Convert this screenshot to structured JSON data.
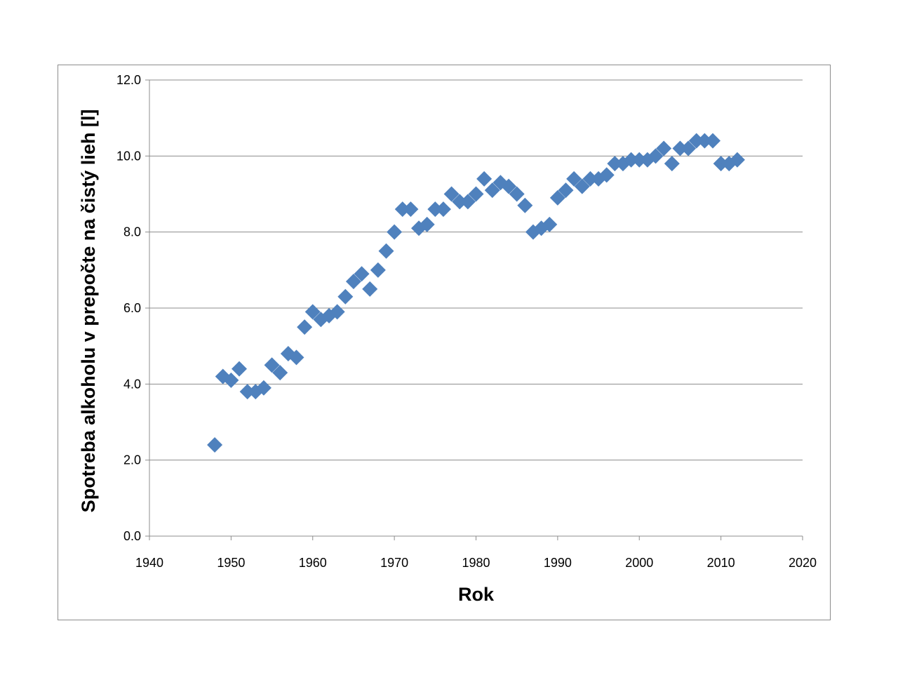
{
  "chart_data": {
    "type": "scatter",
    "title": "",
    "xlabel": "Rok",
    "ylabel": "Spotreba alkoholu v prepočte na čistý lieh [l]",
    "xlim": [
      1940,
      2020
    ],
    "ylim": [
      0,
      12
    ],
    "x_ticks": [
      1940,
      1950,
      1960,
      1970,
      1980,
      1990,
      2000,
      2010,
      2020
    ],
    "y_ticks": [
      "0.0",
      "2.0",
      "4.0",
      "6.0",
      "8.0",
      "10.0",
      "12.0"
    ],
    "grid": "horizontal",
    "legend": "none",
    "marker": "diamond",
    "colors": {
      "marker": "#4f81bd",
      "gridline": "#8c8c8c",
      "axis": "#8c8c8c",
      "frame": "#8c8c8c"
    },
    "series": [
      {
        "x": [
          1948,
          1949,
          1950,
          1951,
          1952,
          1953,
          1954,
          1955,
          1956,
          1957,
          1958,
          1959,
          1960,
          1961,
          1962,
          1963,
          1964,
          1965,
          1966,
          1967,
          1968,
          1969,
          1970,
          1971,
          1972,
          1973,
          1974,
          1975,
          1976,
          1977,
          1978,
          1979,
          1980,
          1981,
          1982,
          1983,
          1984,
          1985,
          1986,
          1987,
          1988,
          1989,
          1990,
          1991,
          1992,
          1993,
          1994,
          1995,
          1996,
          1997,
          1998,
          1999,
          2000,
          2001,
          2002,
          2003,
          2004,
          2005,
          2006,
          2007,
          2008,
          2009,
          2010,
          2011,
          2012
        ],
        "y": [
          2.4,
          4.2,
          4.1,
          4.4,
          3.8,
          3.8,
          3.9,
          4.5,
          4.3,
          4.8,
          4.7,
          5.5,
          5.9,
          5.7,
          5.8,
          5.9,
          6.3,
          6.7,
          6.9,
          6.5,
          7.0,
          7.5,
          8.0,
          8.6,
          8.6,
          8.1,
          8.2,
          8.6,
          8.6,
          9.0,
          8.8,
          8.8,
          9.0,
          9.4,
          9.1,
          9.3,
          9.2,
          9.0,
          8.7,
          8.0,
          8.1,
          8.2,
          8.9,
          9.1,
          9.4,
          9.2,
          9.4,
          9.4,
          9.5,
          9.8,
          9.8,
          9.9,
          9.9,
          9.9,
          10.0,
          10.2,
          9.8,
          10.2,
          10.2,
          10.4,
          10.4,
          10.4,
          9.8,
          9.8,
          9.9
        ]
      }
    ]
  }
}
